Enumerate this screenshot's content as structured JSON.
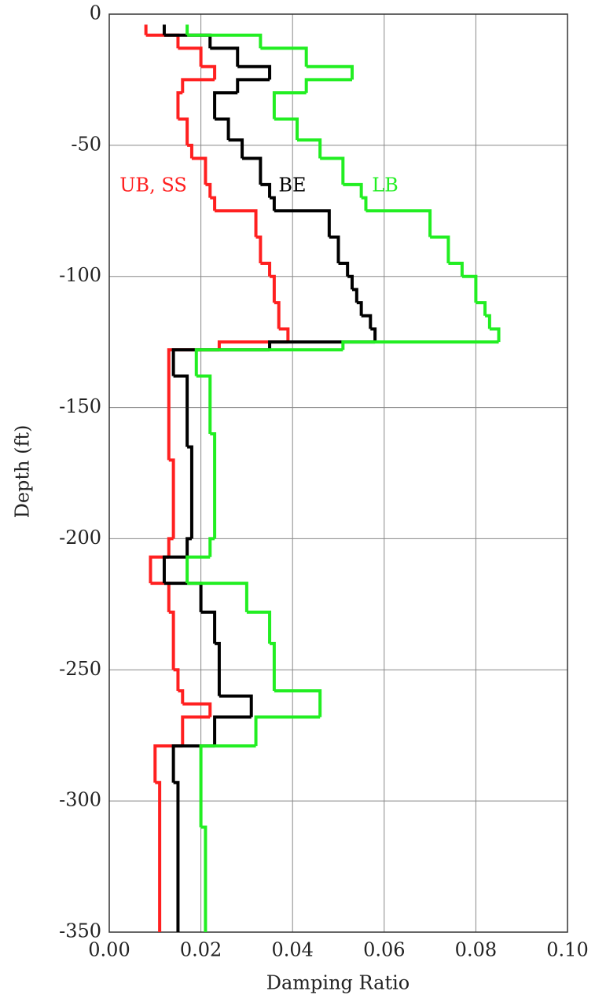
{
  "chart_data": {
    "type": "step",
    "x_label": "Damping Ratio",
    "y_label": "Depth (ft)",
    "xlim": [
      0,
      0.1
    ],
    "ylim": [
      -350,
      0
    ],
    "xticks": [
      {
        "value": 0,
        "label": "0.00"
      },
      {
        "value": 0.02,
        "label": "0.02"
      },
      {
        "value": 0.04,
        "label": "0.04"
      },
      {
        "value": 0.06,
        "label": "0.06"
      },
      {
        "value": 0.08,
        "label": "0.08"
      },
      {
        "value": 0.1,
        "label": "0.10"
      }
    ],
    "yticks": [
      0,
      -50,
      -100,
      -150,
      -200,
      -250,
      -300,
      -350
    ],
    "grid": true,
    "series": [
      {
        "name": "UB, SS",
        "color": "#ff2020",
        "depths": [
          -4,
          -8,
          -13,
          -20,
          -25,
          -30,
          -40,
          -50,
          -55,
          -65,
          -70,
          -75,
          -85,
          -95,
          -100,
          -110,
          -120,
          -125,
          -128,
          -138,
          -170,
          -200,
          -207,
          -217,
          -228,
          -250,
          -258,
          -263,
          -268,
          -279,
          -293,
          -350
        ],
        "values": [
          0.008,
          0.015,
          0.02,
          0.023,
          0.016,
          0.015,
          0.017,
          0.018,
          0.021,
          0.022,
          0.023,
          0.032,
          0.033,
          0.035,
          0.036,
          0.037,
          0.039,
          0.024,
          0.013,
          0.013,
          0.014,
          0.013,
          0.009,
          0.013,
          0.014,
          0.015,
          0.016,
          0.022,
          0.016,
          0.01,
          0.011
        ]
      },
      {
        "name": "BE",
        "color": "#000000",
        "depths": [
          -4,
          -8,
          -13,
          -20,
          -25,
          -30,
          -40,
          -48,
          -55,
          -65,
          -70,
          -75,
          -85,
          -95,
          -100,
          -105,
          -110,
          -115,
          -120,
          -125,
          -128,
          -138,
          -150,
          -165,
          -200,
          -207,
          -217,
          -228,
          -240,
          -260,
          -268,
          -279,
          -293,
          -350
        ],
        "values": [
          0.012,
          0.022,
          0.028,
          0.035,
          0.028,
          0.023,
          0.026,
          0.029,
          0.033,
          0.035,
          0.036,
          0.048,
          0.05,
          0.052,
          0.053,
          0.054,
          0.055,
          0.057,
          0.058,
          0.035,
          0.014,
          0.017,
          0.017,
          0.018,
          0.017,
          0.012,
          0.02,
          0.023,
          0.024,
          0.031,
          0.023,
          0.014,
          0.015
        ]
      },
      {
        "name": "LB",
        "color": "#22ee22",
        "depths": [
          -4,
          -8,
          -13,
          -20,
          -25,
          -30,
          -40,
          -48,
          -55,
          -65,
          -70,
          -75,
          -85,
          -95,
          -100,
          -110,
          -115,
          -120,
          -125,
          -128,
          -138,
          -160,
          -200,
          -207,
          -217,
          -228,
          -240,
          -258,
          -268,
          -279,
          -310,
          -350
        ],
        "values": [
          0.017,
          0.033,
          0.043,
          0.053,
          0.043,
          0.036,
          0.041,
          0.046,
          0.051,
          0.055,
          0.056,
          0.07,
          0.074,
          0.077,
          0.08,
          0.082,
          0.083,
          0.085,
          0.051,
          0.019,
          0.022,
          0.023,
          0.022,
          0.017,
          0.03,
          0.035,
          0.036,
          0.046,
          0.032,
          0.02,
          0.021
        ]
      }
    ]
  }
}
